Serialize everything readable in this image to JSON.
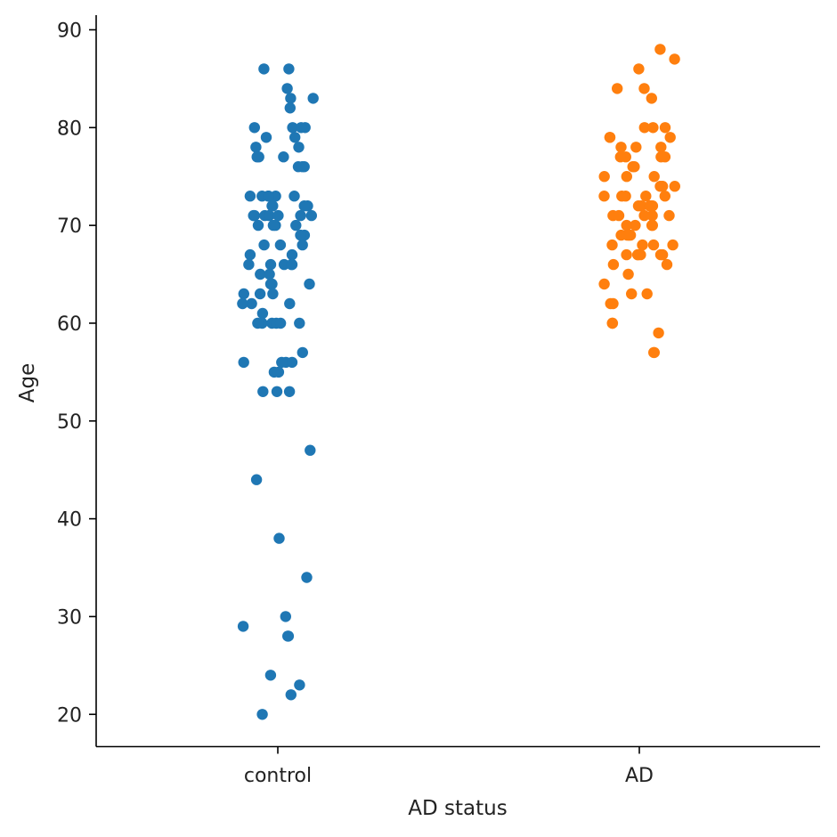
{
  "chart_data": {
    "type": "scatter",
    "subtype": "strip",
    "xlabel": "AD status",
    "ylabel": "Age",
    "categories": [
      "control",
      "AD"
    ],
    "yticks": [
      20,
      30,
      40,
      50,
      60,
      70,
      80,
      90
    ],
    "ylim": [
      16.7,
      91.5
    ],
    "grid": false,
    "legend": "none",
    "series": [
      {
        "category": "control",
        "color": "#1f77b4",
        "values": [
          86,
          86,
          84,
          83,
          83,
          82,
          80,
          80,
          80,
          80,
          79,
          79,
          78,
          78,
          77,
          77,
          77,
          76,
          76,
          76,
          73,
          73,
          73,
          73,
          73,
          73,
          72,
          72,
          72,
          72,
          71,
          71,
          71,
          71,
          71,
          71,
          71,
          70,
          70,
          70,
          70,
          69,
          69,
          68,
          68,
          68,
          67,
          67,
          66,
          66,
          66,
          66,
          66,
          65,
          65,
          64,
          64,
          64,
          63,
          63,
          63,
          62,
          62,
          62,
          61,
          60,
          60,
          60,
          60,
          60,
          60,
          57,
          56,
          56,
          56,
          56,
          55,
          55,
          53,
          53,
          53,
          47,
          44,
          38,
          34,
          30,
          29,
          28,
          28,
          24,
          23,
          22,
          20
        ]
      },
      {
        "category": "AD",
        "color": "#ff7f0e",
        "values": [
          88,
          87,
          86,
          84,
          84,
          83,
          80,
          80,
          80,
          79,
          79,
          79,
          78,
          78,
          78,
          77,
          77,
          77,
          77,
          76,
          76,
          75,
          75,
          75,
          74,
          74,
          74,
          73,
          73,
          73,
          73,
          73,
          72,
          72,
          72,
          72,
          72,
          72,
          71,
          71,
          71,
          71,
          71,
          70,
          70,
          70,
          70,
          69,
          69,
          69,
          69,
          68,
          68,
          68,
          68,
          67,
          67,
          67,
          67,
          67,
          67,
          66,
          66,
          65,
          64,
          63,
          63,
          62,
          62,
          60,
          60,
          59,
          57,
          57
        ]
      }
    ]
  }
}
